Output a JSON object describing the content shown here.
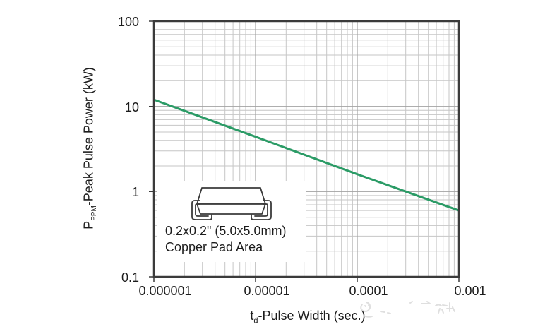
{
  "figure": {
    "background": "#ffffff",
    "text_color": "#1c1c1c"
  },
  "chart_data": {
    "type": "line",
    "x_scale": "log",
    "y_scale": "log",
    "xlim": [
      1e-06,
      0.001
    ],
    "ylim": [
      0.1,
      100
    ],
    "grid": {
      "major": true,
      "minor": true
    },
    "x_ticks": [
      {
        "value": 1e-06,
        "label": "0.000001"
      },
      {
        "value": 1e-05,
        "label": "0.00001"
      },
      {
        "value": 0.0001,
        "label": "0.0001"
      },
      {
        "value": 0.001,
        "label": "0.001"
      }
    ],
    "y_ticks": [
      {
        "value": 100,
        "label": "100"
      },
      {
        "value": 10,
        "label": "10"
      },
      {
        "value": 1,
        "label": "1"
      },
      {
        "value": 0.1,
        "label": "0.1"
      }
    ],
    "xlabel": {
      "pre": "t",
      "sub": "d",
      "post": "-Pulse Width (sec.)"
    },
    "ylabel": {
      "pre": "P",
      "sub": "PPM",
      "post": "-Peak Pulse Power (kW)"
    },
    "series": [
      {
        "name": "peak-pulse-power-vs-pulse-width",
        "color": "#2b9b66",
        "points": [
          {
            "x": 1e-06,
            "y": 12
          },
          {
            "x": 1e-05,
            "y": 4.4
          },
          {
            "x": 0.0001,
            "y": 1.6
          },
          {
            "x": 0.001,
            "y": 0.6
          }
        ]
      }
    ],
    "colors": {
      "grid_minor": "#c6c6c6",
      "grid_major": "#a3a3a3",
      "frame": "#3b3b3b"
    },
    "annotation": {
      "icon": "smd-package-outline-icon",
      "line1": "0.2x0.2\" (5.0x5.0mm)",
      "line2": "Copper Pad Area"
    }
  }
}
